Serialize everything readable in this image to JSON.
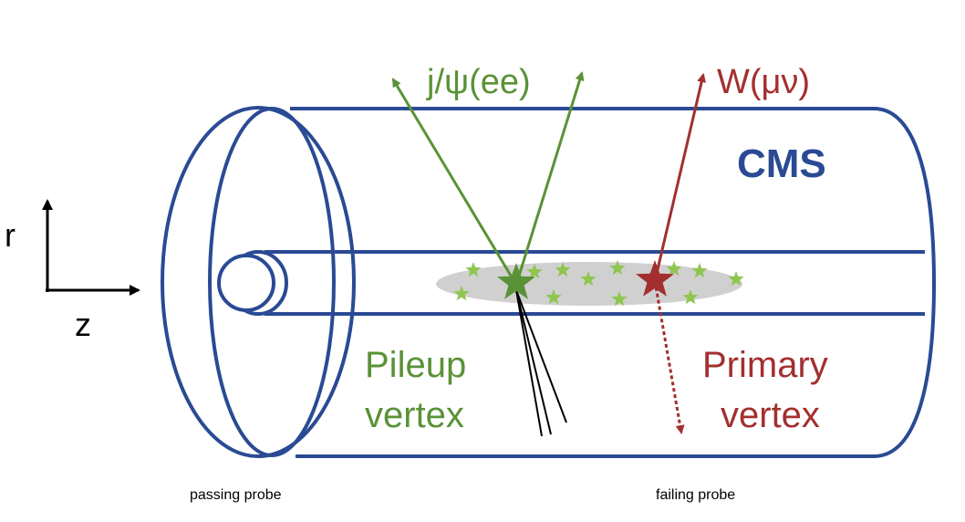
{
  "labels": {
    "jpsi": "j/ψ(ee)",
    "w": "W(μν)",
    "cms": "CMS",
    "axis_r": "r",
    "axis_z": "z",
    "pileup_line1": "Pileup",
    "pileup_line2": "vertex",
    "primary_line1": "Primary",
    "primary_line2": "vertex",
    "passing_probe": "passing probe",
    "failing_probe": "failing probe"
  },
  "colors": {
    "detector": "#2a4a94",
    "pileup": "#5a9237",
    "primary": "#a32f2f",
    "cloud": "#d0d0d0",
    "small_star": "#8fc64f",
    "axis": "#000000"
  },
  "icons": {
    "pileup_vertex": "star-icon",
    "primary_vertex": "star-icon",
    "pileup_stars": "star-icon"
  }
}
